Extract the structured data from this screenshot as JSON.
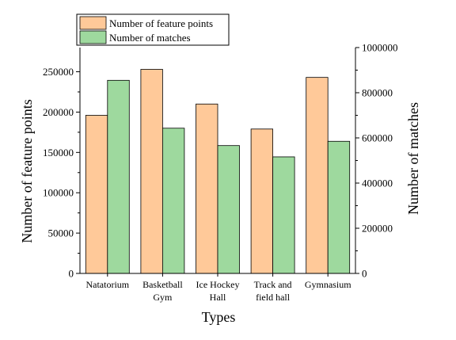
{
  "chart_data": {
    "type": "bar",
    "categories": [
      [
        "Natatorium"
      ],
      [
        "Basketball",
        "Gym"
      ],
      [
        "Ice Hockey",
        "Hall"
      ],
      [
        "Track and",
        "field hall"
      ],
      [
        "Gymnasium"
      ]
    ],
    "xlabel": "Types",
    "ylabel_left": "Number of feature points",
    "ylabel_right": "Number of matches",
    "y_left": {
      "min": 0,
      "max": 280000,
      "ticks": [
        0,
        50000,
        100000,
        150000,
        200000,
        250000
      ],
      "tick_labels": [
        "0",
        "50000",
        "100000",
        "150000",
        "200000",
        "250000"
      ]
    },
    "y_right": {
      "min": 0,
      "max": 1000000,
      "ticks": [
        0,
        200000,
        400000,
        600000,
        800000,
        1000000
      ],
      "tick_labels": [
        "0",
        "200000",
        "400000",
        "600000",
        "800000",
        "1000000"
      ]
    },
    "series": [
      {
        "name": "Number of feature points",
        "axis": "left",
        "color": "#ffc999",
        "values": [
          196000,
          253000,
          210000,
          179000,
          243000
        ]
      },
      {
        "name": "Number of matches",
        "axis": "right",
        "color": "#9ed99e",
        "values": [
          855000,
          643000,
          566000,
          516000,
          585000
        ]
      }
    ],
    "legend_position": "top-left",
    "grid": false
  }
}
